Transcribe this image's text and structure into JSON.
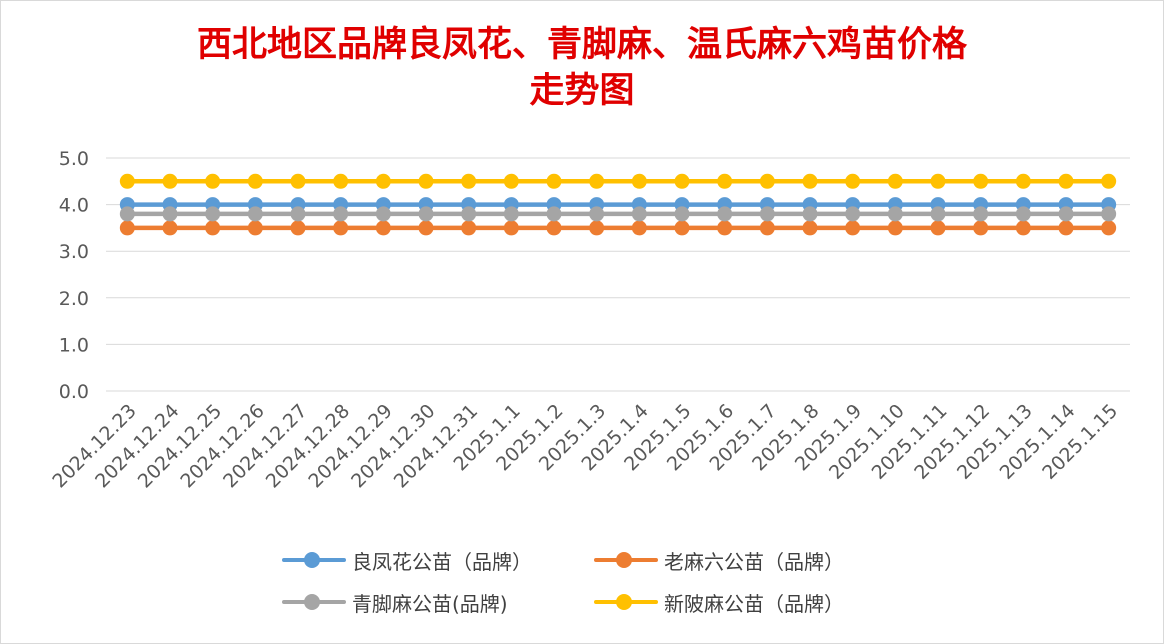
{
  "chart_data": {
    "type": "line",
    "title_lines": [
      "西北地区品牌良凤花、青脚麻、温氏麻六鸡苗价格",
      "走势图"
    ],
    "categories": [
      "2024.12.23",
      "2024.12.24",
      "2024.12.25",
      "2024.12.26",
      "2024.12.27",
      "2024.12.28",
      "2024.12.29",
      "2024.12.30",
      "2024.12.31",
      "2025.1.1",
      "2025.1.2",
      "2025.1.3",
      "2025.1.4",
      "2025.1.5",
      "2025.1.6",
      "2025.1.7",
      "2025.1.8",
      "2025.1.9",
      "2025.1.10",
      "2025.1.11",
      "2025.1.12",
      "2025.1.13",
      "2025.1.14",
      "2025.1.15"
    ],
    "ylim": [
      0,
      5
    ],
    "yticks": [
      "0.0",
      "1.0",
      "2.0",
      "3.0",
      "4.0",
      "5.0"
    ],
    "grid": true,
    "legend_position": "bottom",
    "series": [
      {
        "name": "良凤花公苗（品牌）",
        "color": "#5b9bd5",
        "values": [
          4.0,
          4.0,
          4.0,
          4.0,
          4.0,
          4.0,
          4.0,
          4.0,
          4.0,
          4.0,
          4.0,
          4.0,
          4.0,
          4.0,
          4.0,
          4.0,
          4.0,
          4.0,
          4.0,
          4.0,
          4.0,
          4.0,
          4.0,
          4.0
        ]
      },
      {
        "name": "老麻六公苗（品牌）",
        "color": "#ed7d31",
        "values": [
          3.5,
          3.5,
          3.5,
          3.5,
          3.5,
          3.5,
          3.5,
          3.5,
          3.5,
          3.5,
          3.5,
          3.5,
          3.5,
          3.5,
          3.5,
          3.5,
          3.5,
          3.5,
          3.5,
          3.5,
          3.5,
          3.5,
          3.5,
          3.5
        ]
      },
      {
        "name": "青脚麻公苗(品牌)",
        "color": "#a5a5a5",
        "values": [
          3.8,
          3.8,
          3.8,
          3.8,
          3.8,
          3.8,
          3.8,
          3.8,
          3.8,
          3.8,
          3.8,
          3.8,
          3.8,
          3.8,
          3.8,
          3.8,
          3.8,
          3.8,
          3.8,
          3.8,
          3.8,
          3.8,
          3.8,
          3.8
        ]
      },
      {
        "name": "新陂麻公苗（品牌）",
        "color": "#ffc000",
        "values": [
          4.5,
          4.5,
          4.5,
          4.5,
          4.5,
          4.5,
          4.5,
          4.5,
          4.5,
          4.5,
          4.5,
          4.5,
          4.5,
          4.5,
          4.5,
          4.5,
          4.5,
          4.5,
          4.5,
          4.5,
          4.5,
          4.5,
          4.5,
          4.5
        ]
      }
    ]
  }
}
